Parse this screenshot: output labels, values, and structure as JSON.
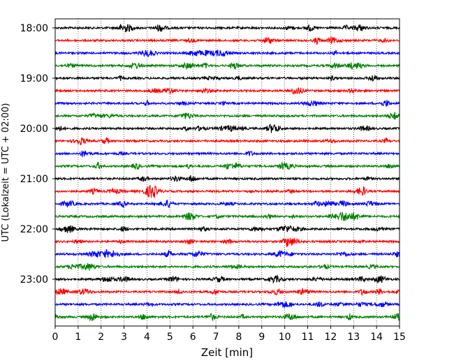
{
  "chart_data": {
    "type": "line",
    "subtype": "helicorder seismogram",
    "xlabel": "Zeit  [min]",
    "ylabel": "UTC (Lokalzeit = UTC + 02:00)",
    "xlim": [
      0,
      15
    ],
    "x_ticks": [
      "0",
      "1",
      "2",
      "3",
      "4",
      "5",
      "6",
      "7",
      "8",
      "9",
      "10",
      "11",
      "12",
      "13",
      "14",
      "15"
    ],
    "y_tick_labels": [
      "18:00",
      "19:00",
      "20:00",
      "21:00",
      "22:00",
      "23:00"
    ],
    "trace_interval_min": 15,
    "trace_start_times": [
      "18:00",
      "18:15",
      "18:30",
      "18:45",
      "19:00",
      "19:15",
      "19:30",
      "19:45",
      "20:00",
      "20:15",
      "20:30",
      "20:45",
      "21:00",
      "21:15",
      "21:30",
      "21:45",
      "22:00",
      "22:15",
      "22:30",
      "22:45",
      "23:00",
      "23:15",
      "23:30",
      "23:45"
    ],
    "trace_colors_cycle": [
      "#000000",
      "#ff0000",
      "#0000ff",
      "#008000"
    ],
    "vertical_grid": "dotted, every 1 min"
  }
}
